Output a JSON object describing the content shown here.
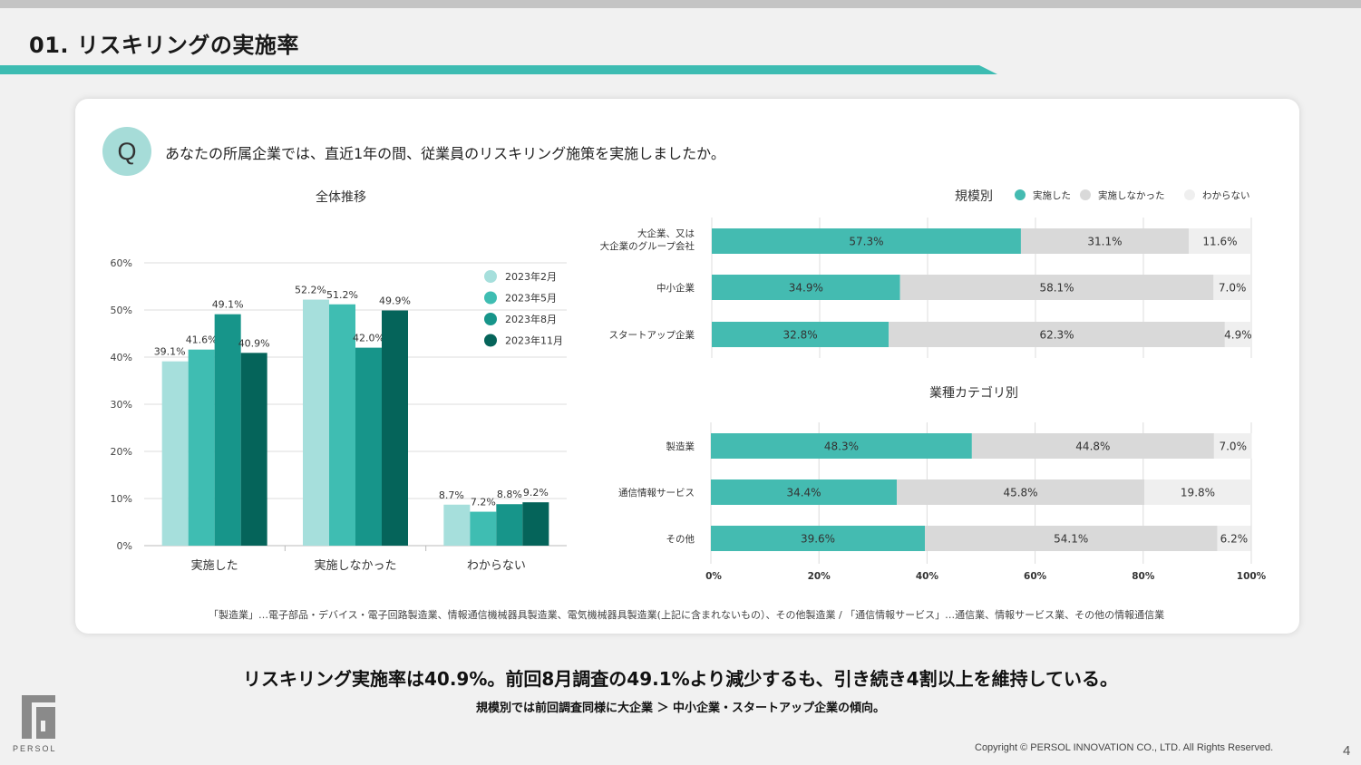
{
  "page": {
    "title": "01. リスキリングの実施率",
    "question_mark": "Q",
    "question": "あなたの所属企業では、直近1年の間、従業員のリスキリング施策を実施しましたか。",
    "footnote": "「製造業」…電子部品・デバイス・電子回路製造業、情報通信機械器具製造業、電気機械器具製造業(上記に含まれないもの）、その他製造業 / 「通信情報サービス」…通信業、情報サービス業、その他の情報通信業",
    "summary": "リスキリング実施率は40.9%。前回8月調査の49.1%より減少するも、引き続き4割以上を維持している。",
    "sub_summary": "規模別では前回調査同様に大企業 ＞ 中小企業・スタートアップ企業の傾向。",
    "logo_text": "PERSOL",
    "copyright": "Copyright © PERSOL INNOVATION CO., LTD. All Rights Reserved.",
    "page_number": "4"
  },
  "colors": {
    "title_line": "#3dbcb2",
    "series": [
      "#a6dfdc",
      "#3fbdb2",
      "#17958a",
      "#05645a"
    ],
    "stack": [
      "#44bbb1",
      "#d9d9d9",
      "#efefef"
    ]
  },
  "chart_data": [
    {
      "type": "bar",
      "title": "全体推移",
      "categories": [
        "実施した",
        "実施しなかった",
        "わからない"
      ],
      "series": [
        {
          "name": "2023年2月",
          "values": [
            39.1,
            52.2,
            8.7
          ]
        },
        {
          "name": "2023年5月",
          "values": [
            41.6,
            51.2,
            7.2
          ]
        },
        {
          "name": "2023年8月",
          "values": [
            49.1,
            42.0,
            8.8
          ]
        },
        {
          "name": "2023年11月",
          "values": [
            40.9,
            49.9,
            9.2
          ]
        }
      ],
      "ylim": [
        0,
        60
      ],
      "yticks": [
        "0%",
        "10%",
        "20%",
        "30%",
        "40%",
        "50%",
        "60%"
      ],
      "grid": true,
      "legend": "top-right"
    },
    {
      "type": "bar",
      "orientation": "horizontal-stacked",
      "title": "規模別",
      "legend_labels": [
        "実施した",
        "実施しなかった",
        "わからない"
      ],
      "legend": "top-right",
      "categories": [
        [
          "大企業、又は",
          "大企業のグループ会社"
        ],
        [
          "中小企業"
        ],
        [
          "スタートアップ企業"
        ]
      ],
      "series": [
        {
          "name": "実施した",
          "values": [
            57.3,
            34.9,
            32.8
          ]
        },
        {
          "name": "実施しなかった",
          "values": [
            31.1,
            58.1,
            62.3
          ]
        },
        {
          "name": "わからない",
          "values": [
            11.6,
            7.0,
            4.9
          ]
        }
      ],
      "xlim": [
        0,
        100
      ]
    },
    {
      "type": "bar",
      "orientation": "horizontal-stacked",
      "title": "業種カテゴリ別",
      "categories": [
        [
          "製造業"
        ],
        [
          "通信情報サービス"
        ],
        [
          "その他"
        ]
      ],
      "series": [
        {
          "name": "実施した",
          "values": [
            48.3,
            34.4,
            39.6
          ]
        },
        {
          "name": "実施しなかった",
          "values": [
            44.8,
            45.8,
            54.1
          ]
        },
        {
          "name": "わからない",
          "values": [
            7.0,
            19.8,
            6.2
          ]
        }
      ],
      "xlim": [
        0,
        100
      ],
      "xticks": [
        "0%",
        "20%",
        "40%",
        "60%",
        "80%",
        "100%"
      ]
    }
  ]
}
